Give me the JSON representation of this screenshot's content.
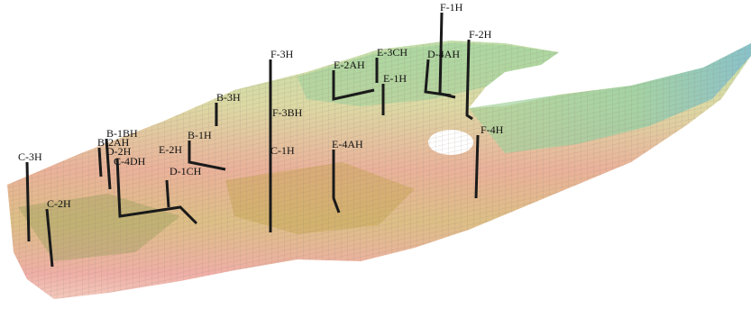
{
  "wells": [
    {
      "label": "F-1H"
    },
    {
      "label": "F-2H"
    },
    {
      "label": "F-3H"
    },
    {
      "label": "E-2AH"
    },
    {
      "label": "E-3CH"
    },
    {
      "label": "D-4AH"
    },
    {
      "label": "E-1H"
    },
    {
      "label": "B-3H"
    },
    {
      "label": "F-3BH"
    },
    {
      "label": "F-4H"
    },
    {
      "label": "B-1BH"
    },
    {
      "label": "B-1H"
    },
    {
      "label": "B-2AH"
    },
    {
      "label": "D-2H"
    },
    {
      "label": "E-2H"
    },
    {
      "label": "C-1H"
    },
    {
      "label": "E-4AH"
    },
    {
      "label": "C-4DH"
    },
    {
      "label": "D-1CH"
    },
    {
      "label": "C-3H"
    },
    {
      "label": "C-2H"
    }
  ]
}
